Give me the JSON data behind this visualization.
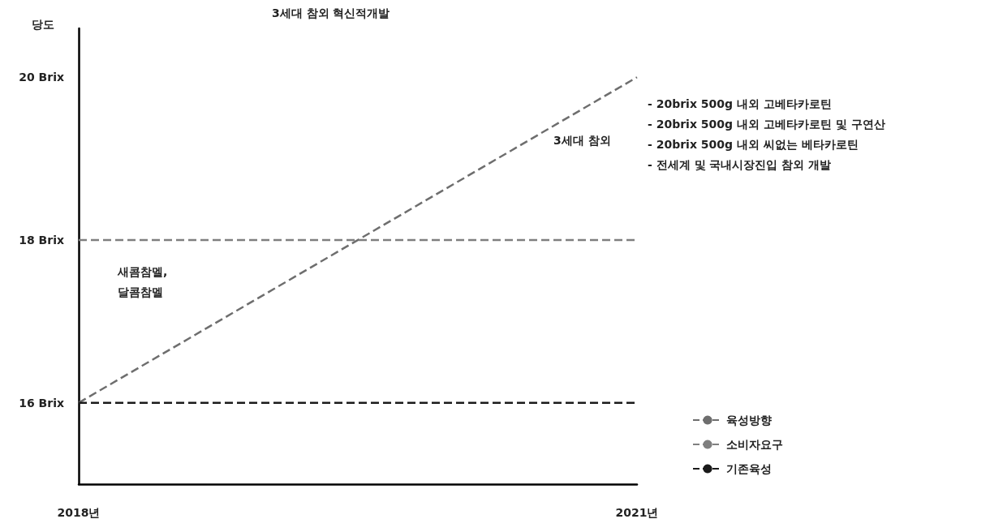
{
  "chart_data": {
    "type": "line",
    "title": "3세대 참외 혁신적개발",
    "ylabel": "당도",
    "x": [
      2018,
      2021
    ],
    "series": [
      {
        "name": "육성방향",
        "color": "#6e6e6e",
        "values": [
          16,
          20
        ]
      },
      {
        "name": "소비자요구",
        "color": "#7f7f7f",
        "values": [
          18,
          18
        ]
      },
      {
        "name": "기존육성",
        "color": "#1a1a1a",
        "values": [
          16,
          16
        ]
      }
    ],
    "xlim": [
      2018,
      2021
    ],
    "xticks": [
      {
        "value": 2018,
        "label": "2018년"
      },
      {
        "value": 2021,
        "label": "2021년"
      }
    ],
    "ylim": [
      15,
      20.6
    ],
    "yticks": [
      {
        "value": 16,
        "label": "16 Brix"
      },
      {
        "value": 18,
        "label": "18 Brix"
      },
      {
        "value": 20,
        "label": "20 Brix"
      }
    ],
    "annotations": [
      "3세대 참외",
      "- 20brix 500g 내외 고베타카로틴\n- 20brix 500g 내외 고베타카로틴 및 구연산\n- 20brix 500g 내외 씨없는 베타카로틴\n- 전세계 및 국내시장진입 참외 개발",
      "새콤참멜,\n달콤참멜"
    ],
    "line_style": "dashed",
    "grid": false,
    "legend": "bottom right"
  }
}
